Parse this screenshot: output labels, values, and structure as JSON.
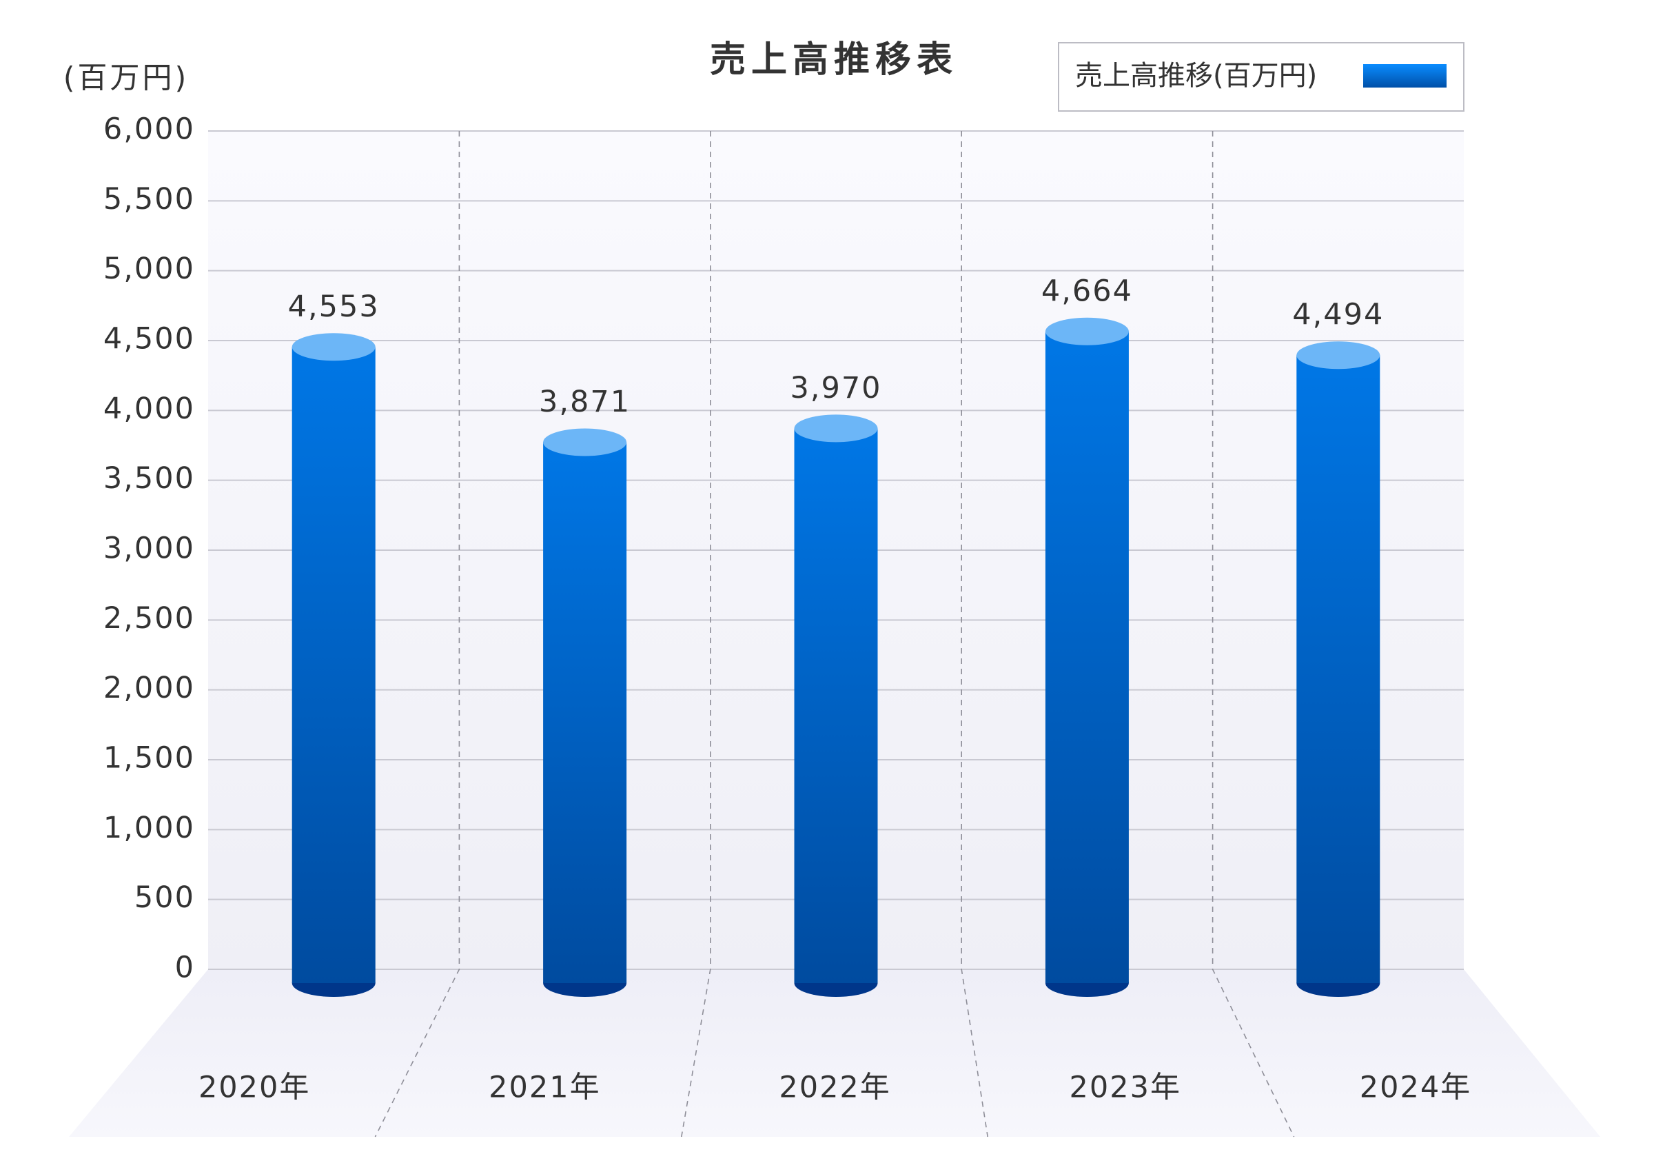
{
  "chart_data": {
    "type": "bar",
    "title": "売上高推移表",
    "y_unit_label": "(百万円)",
    "categories": [
      "2020年",
      "2021年",
      "2022年",
      "2023年",
      "2024年"
    ],
    "series": [
      {
        "name": "売上高推移(百万円)",
        "color": "#0077e6",
        "values": [
          4553,
          3871,
          3970,
          4664,
          4494
        ],
        "value_labels": [
          "4,553",
          "3,871",
          "3,970",
          "4,664",
          "4,494"
        ]
      }
    ],
    "ylim": [
      0,
      6000
    ],
    "yticks": [
      0,
      500,
      {
        "value": 1000,
        "label": "1,000"
      },
      {
        "value": 1500,
        "label": "1,500"
      },
      {
        "value": 2000,
        "label": "2,000"
      },
      {
        "value": 2500,
        "label": "2,500"
      },
      {
        "value": 3000,
        "label": "3,000"
      },
      {
        "value": 3500,
        "label": "3,500"
      },
      {
        "value": 4000,
        "label": "4,000"
      },
      {
        "value": 4500,
        "label": "4,500"
      },
      {
        "value": 5000,
        "label": "5,000"
      },
      {
        "value": 5500,
        "label": "5,500"
      },
      {
        "value": 6000,
        "label": "6,000"
      }
    ],
    "grid": true,
    "legend": "top-right"
  }
}
